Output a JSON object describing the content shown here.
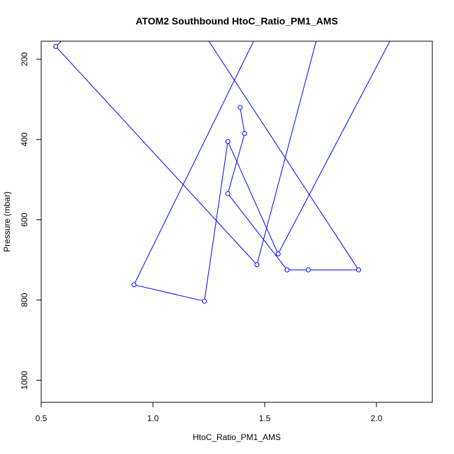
{
  "chart_data": {
    "type": "line",
    "title": "ATOM2 Southbound HtoC_Ratio_PM1_AMS",
    "xlabel": "HtoC_Ratio_PM1_AMS",
    "ylabel": "Pressure (mbar)",
    "xlim": [
      0.5,
      2.25
    ],
    "ylim": [
      1055,
      155
    ],
    "y_reversed": true,
    "x_ticks": [
      0.5,
      1.0,
      1.5,
      2.0
    ],
    "x_tick_labels": [
      "0.5",
      "1.0",
      "1.5",
      "2.0"
    ],
    "y_ticks": [
      200,
      400,
      600,
      800,
      1000
    ],
    "y_tick_labels": [
      "200",
      "400",
      "600",
      "800",
      "1000"
    ],
    "grid": false,
    "color": "#0000ff",
    "series": [
      {
        "points": [
          {
            "x": 0.59,
            "y": 155,
            "marker": false
          },
          {
            "x": 0.565,
            "y": 168,
            "marker": true
          },
          {
            "x": 1.465,
            "y": 712,
            "marker": true
          },
          {
            "x": 1.73,
            "y": 155,
            "marker": false
          }
        ]
      },
      {
        "points": [
          {
            "x": 1.25,
            "y": 155,
            "marker": false
          },
          {
            "x": 1.92,
            "y": 725,
            "marker": true
          },
          {
            "x": 1.695,
            "y": 725,
            "marker": true
          },
          {
            "x": 1.6,
            "y": 725,
            "marker": true
          },
          {
            "x": 1.335,
            "y": 535,
            "marker": true
          },
          {
            "x": 1.41,
            "y": 385,
            "marker": true
          },
          {
            "x": 1.39,
            "y": 320,
            "marker": true
          }
        ]
      },
      {
        "points": [
          {
            "x": 2.06,
            "y": 155,
            "marker": false
          },
          {
            "x": 1.56,
            "y": 685,
            "marker": true
          },
          {
            "x": 1.335,
            "y": 405,
            "marker": true
          },
          {
            "x": 1.23,
            "y": 803,
            "marker": true
          },
          {
            "x": 0.915,
            "y": 762,
            "marker": true
          },
          {
            "x": 1.45,
            "y": 155,
            "marker": false
          }
        ]
      }
    ]
  }
}
